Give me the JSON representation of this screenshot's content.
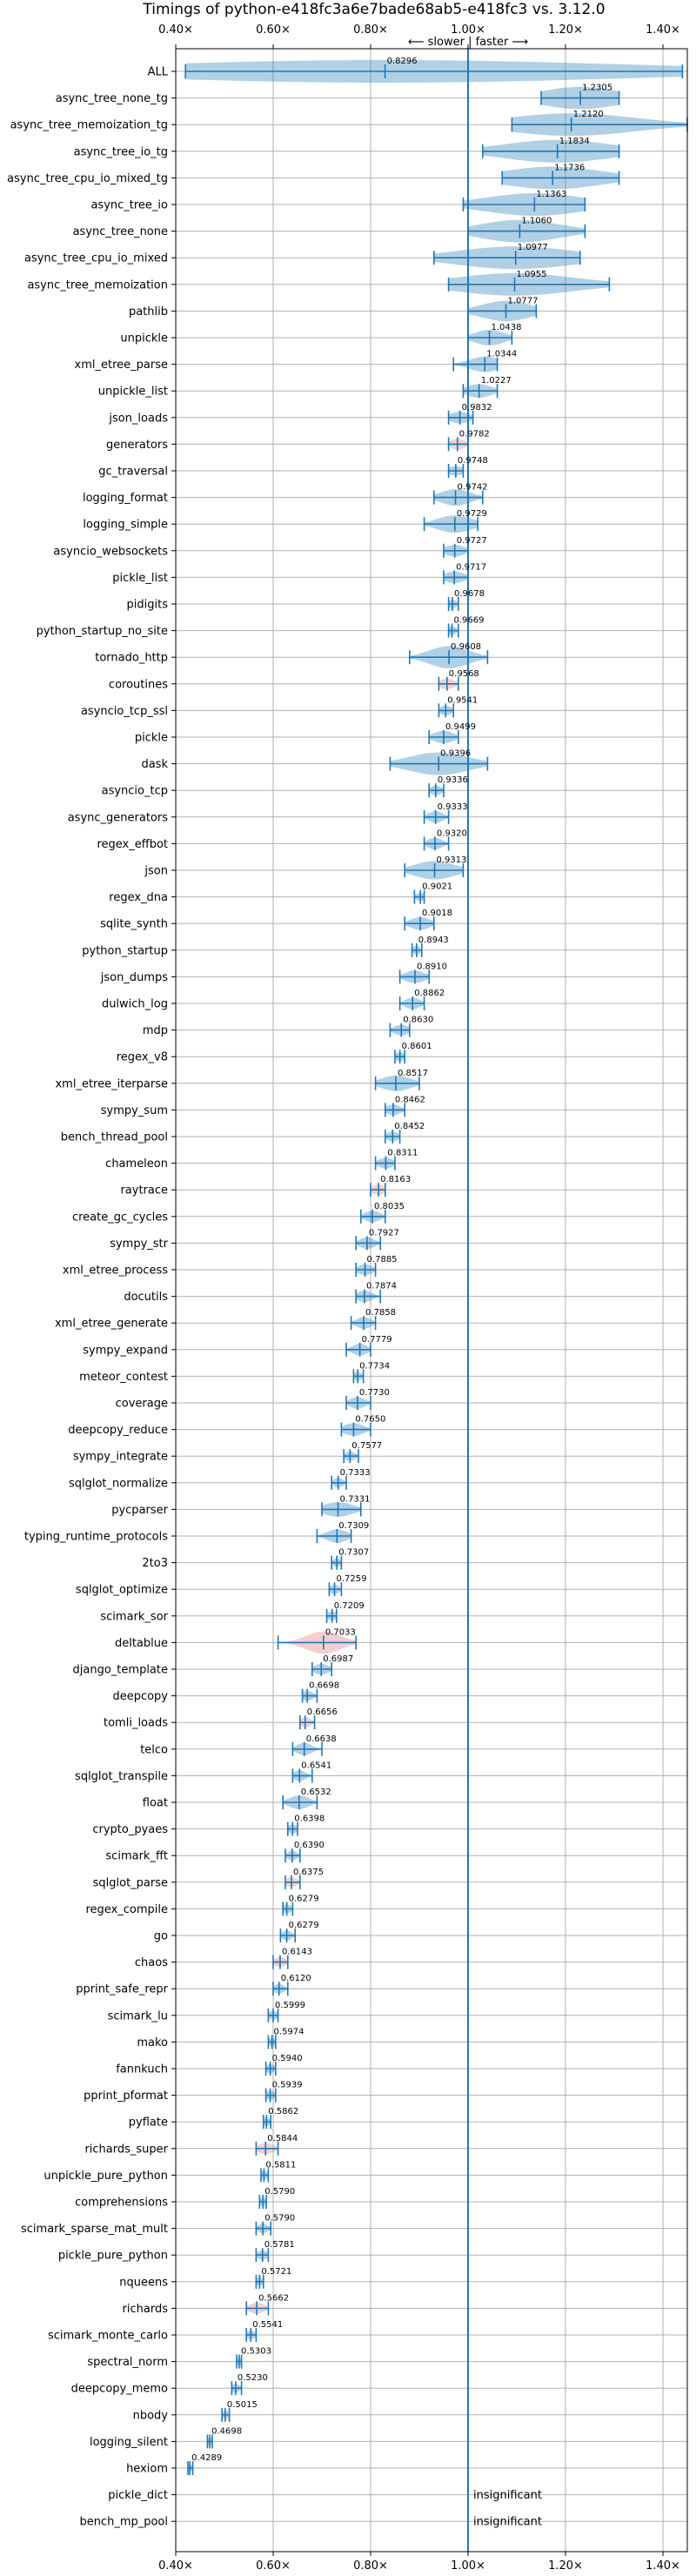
{
  "chart_data": {
    "type": "violin",
    "title": "Timings of python-e418fc3a6e7bade68ab5-e418fc3 vs. 3.12.0",
    "direction_label": "⟵ slower | faster ⟶",
    "xlim": [
      0.4,
      1.45
    ],
    "x_ticks": [
      {
        "value": 0.4,
        "label": "0.40×"
      },
      {
        "value": 0.6,
        "label": "0.60×"
      },
      {
        "value": 0.8,
        "label": "0.80×"
      },
      {
        "value": 1.0,
        "label": "1.00×"
      },
      {
        "value": 1.2,
        "label": "1.20×"
      },
      {
        "value": 1.4,
        "label": "1.40×"
      }
    ],
    "reference_line": 1.0,
    "grid": true,
    "colors": {
      "violin": "#1f77b4",
      "regression": "#e57373",
      "grid": "#b0b0b0"
    },
    "benchmarks": [
      {
        "name": "ALL",
        "value": 0.8296,
        "label": "0.8296",
        "min": 0.42,
        "max": 1.44,
        "spread": 0.5,
        "status": "normal"
      },
      {
        "name": "async_tree_none_tg",
        "value": 1.2305,
        "label": "1.2305",
        "min": 1.15,
        "max": 1.31,
        "spread": 0.08,
        "status": "normal"
      },
      {
        "name": "async_tree_memoization_tg",
        "value": 1.212,
        "label": "1.2120",
        "min": 1.09,
        "max": 1.45,
        "spread": 0.13,
        "status": "normal"
      },
      {
        "name": "async_tree_io_tg",
        "value": 1.1834,
        "label": "1.1834",
        "min": 1.03,
        "max": 1.31,
        "spread": 0.11,
        "status": "normal"
      },
      {
        "name": "async_tree_cpu_io_mixed_tg",
        "value": 1.1736,
        "label": "1.1736",
        "min": 1.07,
        "max": 1.31,
        "spread": 0.1,
        "status": "normal"
      },
      {
        "name": "async_tree_io",
        "value": 1.1363,
        "label": "1.1363",
        "min": 0.99,
        "max": 1.24,
        "spread": 0.1,
        "status": "normal"
      },
      {
        "name": "async_tree_none",
        "value": 1.106,
        "label": "1.1060",
        "min": 1.0,
        "max": 1.24,
        "spread": 0.08,
        "status": "normal"
      },
      {
        "name": "async_tree_cpu_io_mixed",
        "value": 1.0977,
        "label": "1.0977",
        "min": 0.93,
        "max": 1.23,
        "spread": 0.12,
        "status": "normal"
      },
      {
        "name": "async_tree_memoization",
        "value": 1.0955,
        "label": "1.0955",
        "min": 0.96,
        "max": 1.29,
        "spread": 0.12,
        "status": "normal"
      },
      {
        "name": "pathlib",
        "value": 1.0777,
        "label": "1.0777",
        "min": 1.0,
        "max": 1.14,
        "spread": 0.05,
        "status": "normal"
      },
      {
        "name": "unpickle",
        "value": 1.0438,
        "label": "1.0438",
        "min": 1.0,
        "max": 1.09,
        "spread": 0.03,
        "status": "normal"
      },
      {
        "name": "xml_etree_parse",
        "value": 1.0344,
        "label": "1.0344",
        "min": 0.97,
        "max": 1.06,
        "spread": 0.03,
        "status": "normal"
      },
      {
        "name": "unpickle_list",
        "value": 1.0227,
        "label": "1.0227",
        "min": 0.99,
        "max": 1.06,
        "spread": 0.025,
        "status": "normal"
      },
      {
        "name": "json_loads",
        "value": 0.9832,
        "label": "0.9832",
        "min": 0.96,
        "max": 1.01,
        "spread": 0.02,
        "status": "normal"
      },
      {
        "name": "generators",
        "value": 0.9782,
        "label": "0.9782",
        "min": 0.96,
        "max": 1.0,
        "spread": 0.015,
        "status": "regression"
      },
      {
        "name": "gc_traversal",
        "value": 0.9748,
        "label": "0.9748",
        "min": 0.96,
        "max": 0.99,
        "spread": 0.015,
        "status": "normal"
      },
      {
        "name": "logging_format",
        "value": 0.9742,
        "label": "0.9742",
        "min": 0.93,
        "max": 1.03,
        "spread": 0.03,
        "status": "normal"
      },
      {
        "name": "logging_simple",
        "value": 0.9729,
        "label": "0.9729",
        "min": 0.91,
        "max": 1.02,
        "spread": 0.035,
        "status": "normal"
      },
      {
        "name": "asyncio_websockets",
        "value": 0.9727,
        "label": "0.9727",
        "min": 0.95,
        "max": 1.0,
        "spread": 0.02,
        "status": "normal"
      },
      {
        "name": "pickle_list",
        "value": 0.9717,
        "label": "0.9717",
        "min": 0.95,
        "max": 1.0,
        "spread": 0.02,
        "status": "normal"
      },
      {
        "name": "pidigits",
        "value": 0.9678,
        "label": "0.9678",
        "min": 0.96,
        "max": 0.98,
        "spread": 0.008,
        "status": "normal"
      },
      {
        "name": "python_startup_no_site",
        "value": 0.9669,
        "label": "0.9669",
        "min": 0.96,
        "max": 0.98,
        "spread": 0.008,
        "status": "normal"
      },
      {
        "name": "tornado_http",
        "value": 0.9608,
        "label": "0.9608",
        "min": 0.88,
        "max": 1.04,
        "spread": 0.04,
        "status": "normal"
      },
      {
        "name": "coroutines",
        "value": 0.9568,
        "label": "0.9568",
        "min": 0.94,
        "max": 0.98,
        "spread": 0.015,
        "status": "regression"
      },
      {
        "name": "asyncio_tcp_ssl",
        "value": 0.9541,
        "label": "0.9541",
        "min": 0.94,
        "max": 0.97,
        "spread": 0.012,
        "status": "normal"
      },
      {
        "name": "pickle",
        "value": 0.9499,
        "label": "0.9499",
        "min": 0.92,
        "max": 0.98,
        "spread": 0.02,
        "status": "normal"
      },
      {
        "name": "dask",
        "value": 0.9396,
        "label": "0.9396",
        "min": 0.84,
        "max": 1.04,
        "spread": 0.06,
        "status": "normal"
      },
      {
        "name": "asyncio_tcp",
        "value": 0.9336,
        "label": "0.9336",
        "min": 0.92,
        "max": 0.95,
        "spread": 0.012,
        "status": "normal"
      },
      {
        "name": "async_generators",
        "value": 0.9333,
        "label": "0.9333",
        "min": 0.91,
        "max": 0.96,
        "spread": 0.015,
        "status": "normal"
      },
      {
        "name": "regex_effbot",
        "value": 0.932,
        "label": "0.9320",
        "min": 0.91,
        "max": 0.96,
        "spread": 0.015,
        "status": "normal"
      },
      {
        "name": "json",
        "value": 0.9313,
        "label": "0.9313",
        "min": 0.87,
        "max": 0.99,
        "spread": 0.04,
        "status": "normal"
      },
      {
        "name": "regex_dna",
        "value": 0.9021,
        "label": "0.9021",
        "min": 0.89,
        "max": 0.91,
        "spread": 0.008,
        "status": "normal"
      },
      {
        "name": "sqlite_synth",
        "value": 0.9018,
        "label": "0.9018",
        "min": 0.87,
        "max": 0.93,
        "spread": 0.02,
        "status": "normal"
      },
      {
        "name": "python_startup",
        "value": 0.8943,
        "label": "0.8943",
        "min": 0.885,
        "max": 0.905,
        "spread": 0.008,
        "status": "normal"
      },
      {
        "name": "json_dumps",
        "value": 0.891,
        "label": "0.8910",
        "min": 0.86,
        "max": 0.92,
        "spread": 0.02,
        "status": "normal"
      },
      {
        "name": "dulwich_log",
        "value": 0.8862,
        "label": "0.8862",
        "min": 0.86,
        "max": 0.91,
        "spread": 0.015,
        "status": "normal"
      },
      {
        "name": "mdp",
        "value": 0.863,
        "label": "0.8630",
        "min": 0.84,
        "max": 0.88,
        "spread": 0.015,
        "status": "normal"
      },
      {
        "name": "regex_v8",
        "value": 0.8601,
        "label": "0.8601",
        "min": 0.85,
        "max": 0.87,
        "spread": 0.01,
        "status": "normal"
      },
      {
        "name": "xml_etree_iterparse",
        "value": 0.8517,
        "label": "0.8517",
        "min": 0.81,
        "max": 0.9,
        "spread": 0.03,
        "status": "normal"
      },
      {
        "name": "sympy_sum",
        "value": 0.8462,
        "label": "0.8462",
        "min": 0.83,
        "max": 0.87,
        "spread": 0.015,
        "status": "normal"
      },
      {
        "name": "bench_thread_pool",
        "value": 0.8452,
        "label": "0.8452",
        "min": 0.83,
        "max": 0.86,
        "spread": 0.012,
        "status": "normal"
      },
      {
        "name": "chameleon",
        "value": 0.8311,
        "label": "0.8311",
        "min": 0.81,
        "max": 0.85,
        "spread": 0.015,
        "status": "normal"
      },
      {
        "name": "raytrace",
        "value": 0.8163,
        "label": "0.8163",
        "min": 0.8,
        "max": 0.83,
        "spread": 0.015,
        "status": "regression"
      },
      {
        "name": "create_gc_cycles",
        "value": 0.8035,
        "label": "0.8035",
        "min": 0.78,
        "max": 0.83,
        "spread": 0.015,
        "status": "normal"
      },
      {
        "name": "sympy_str",
        "value": 0.7927,
        "label": "0.7927",
        "min": 0.77,
        "max": 0.82,
        "spread": 0.015,
        "status": "normal"
      },
      {
        "name": "xml_etree_process",
        "value": 0.7885,
        "label": "0.7885",
        "min": 0.77,
        "max": 0.81,
        "spread": 0.015,
        "status": "normal"
      },
      {
        "name": "docutils",
        "value": 0.7874,
        "label": "0.7874",
        "min": 0.77,
        "max": 0.82,
        "spread": 0.015,
        "status": "normal"
      },
      {
        "name": "xml_etree_generate",
        "value": 0.7858,
        "label": "0.7858",
        "min": 0.76,
        "max": 0.81,
        "spread": 0.015,
        "status": "normal"
      },
      {
        "name": "sympy_expand",
        "value": 0.7779,
        "label": "0.7779",
        "min": 0.75,
        "max": 0.8,
        "spread": 0.015,
        "status": "normal"
      },
      {
        "name": "meteor_contest",
        "value": 0.7734,
        "label": "0.7734",
        "min": 0.765,
        "max": 0.785,
        "spread": 0.008,
        "status": "normal"
      },
      {
        "name": "coverage",
        "value": 0.773,
        "label": "0.7730",
        "min": 0.75,
        "max": 0.8,
        "spread": 0.015,
        "status": "normal"
      },
      {
        "name": "deepcopy_reduce",
        "value": 0.765,
        "label": "0.7650",
        "min": 0.74,
        "max": 0.8,
        "spread": 0.02,
        "status": "normal"
      },
      {
        "name": "sympy_integrate",
        "value": 0.7577,
        "label": "0.7577",
        "min": 0.745,
        "max": 0.775,
        "spread": 0.01,
        "status": "normal"
      },
      {
        "name": "sqlglot_normalize",
        "value": 0.7333,
        "label": "0.7333",
        "min": 0.72,
        "max": 0.75,
        "spread": 0.01,
        "status": "normal"
      },
      {
        "name": "pycparser",
        "value": 0.7331,
        "label": "0.7331",
        "min": 0.7,
        "max": 0.78,
        "spread": 0.03,
        "status": "normal"
      },
      {
        "name": "typing_runtime_protocols",
        "value": 0.7309,
        "label": "0.7309",
        "min": 0.69,
        "max": 0.76,
        "spread": 0.02,
        "status": "normal"
      },
      {
        "name": "2to3",
        "value": 0.7307,
        "label": "0.7307",
        "min": 0.72,
        "max": 0.74,
        "spread": 0.008,
        "status": "normal"
      },
      {
        "name": "sqlglot_optimize",
        "value": 0.7259,
        "label": "0.7259",
        "min": 0.715,
        "max": 0.74,
        "spread": 0.01,
        "status": "normal"
      },
      {
        "name": "scimark_sor",
        "value": 0.7209,
        "label": "0.7209",
        "min": 0.71,
        "max": 0.73,
        "spread": 0.01,
        "status": "normal"
      },
      {
        "name": "deltablue",
        "value": 0.7033,
        "label": "0.7033",
        "min": 0.61,
        "max": 0.77,
        "spread": 0.035,
        "status": "regression"
      },
      {
        "name": "django_template",
        "value": 0.6987,
        "label": "0.6987",
        "min": 0.68,
        "max": 0.72,
        "spread": 0.015,
        "status": "normal"
      },
      {
        "name": "deepcopy",
        "value": 0.6698,
        "label": "0.6698",
        "min": 0.66,
        "max": 0.69,
        "spread": 0.012,
        "status": "normal"
      },
      {
        "name": "tomli_loads",
        "value": 0.6656,
        "label": "0.6656",
        "min": 0.655,
        "max": 0.685,
        "spread": 0.012,
        "status": "regression"
      },
      {
        "name": "telco",
        "value": 0.6638,
        "label": "0.6638",
        "min": 0.64,
        "max": 0.7,
        "spread": 0.015,
        "status": "normal"
      },
      {
        "name": "sqlglot_transpile",
        "value": 0.6541,
        "label": "0.6541",
        "min": 0.64,
        "max": 0.68,
        "spread": 0.012,
        "status": "normal"
      },
      {
        "name": "float",
        "value": 0.6532,
        "label": "0.6532",
        "min": 0.62,
        "max": 0.69,
        "spread": 0.02,
        "status": "normal"
      },
      {
        "name": "crypto_pyaes",
        "value": 0.6398,
        "label": "0.6398",
        "min": 0.63,
        "max": 0.65,
        "spread": 0.01,
        "status": "normal"
      },
      {
        "name": "scimark_fft",
        "value": 0.639,
        "label": "0.6390",
        "min": 0.625,
        "max": 0.655,
        "spread": 0.01,
        "status": "normal"
      },
      {
        "name": "sqlglot_parse",
        "value": 0.6375,
        "label": "0.6375",
        "min": 0.625,
        "max": 0.655,
        "spread": 0.012,
        "status": "regression"
      },
      {
        "name": "regex_compile",
        "value": 0.6279,
        "label": "0.6279",
        "min": 0.62,
        "max": 0.64,
        "spread": 0.01,
        "status": "normal"
      },
      {
        "name": "go",
        "value": 0.6279,
        "label": "0.6279",
        "min": 0.615,
        "max": 0.645,
        "spread": 0.01,
        "status": "normal"
      },
      {
        "name": "chaos",
        "value": 0.6143,
        "label": "0.6143",
        "min": 0.6,
        "max": 0.63,
        "spread": 0.012,
        "status": "regression"
      },
      {
        "name": "pprint_safe_repr",
        "value": 0.612,
        "label": "0.6120",
        "min": 0.6,
        "max": 0.63,
        "spread": 0.01,
        "status": "normal"
      },
      {
        "name": "scimark_lu",
        "value": 0.5999,
        "label": "0.5999",
        "min": 0.59,
        "max": 0.61,
        "spread": 0.01,
        "status": "normal"
      },
      {
        "name": "mako",
        "value": 0.5974,
        "label": "0.5974",
        "min": 0.59,
        "max": 0.605,
        "spread": 0.008,
        "status": "normal"
      },
      {
        "name": "fannkuch",
        "value": 0.594,
        "label": "0.5940",
        "min": 0.585,
        "max": 0.605,
        "spread": 0.01,
        "status": "normal"
      },
      {
        "name": "pprint_pformat",
        "value": 0.5939,
        "label": "0.5939",
        "min": 0.585,
        "max": 0.605,
        "spread": 0.01,
        "status": "normal"
      },
      {
        "name": "pyflate",
        "value": 0.5862,
        "label": "0.5862",
        "min": 0.58,
        "max": 0.595,
        "spread": 0.008,
        "status": "normal"
      },
      {
        "name": "richards_super",
        "value": 0.5844,
        "label": "0.5844",
        "min": 0.565,
        "max": 0.61,
        "spread": 0.015,
        "status": "regression"
      },
      {
        "name": "unpickle_pure_python",
        "value": 0.5811,
        "label": "0.5811",
        "min": 0.575,
        "max": 0.59,
        "spread": 0.008,
        "status": "normal"
      },
      {
        "name": "comprehensions",
        "value": 0.579,
        "label": "0.5790",
        "min": 0.572,
        "max": 0.586,
        "spread": 0.007,
        "status": "normal"
      },
      {
        "name": "scimark_sparse_mat_mult",
        "value": 0.579,
        "label": "0.5790",
        "min": 0.565,
        "max": 0.595,
        "spread": 0.01,
        "status": "normal"
      },
      {
        "name": "pickle_pure_python",
        "value": 0.5781,
        "label": "0.5781",
        "min": 0.565,
        "max": 0.59,
        "spread": 0.01,
        "status": "normal"
      },
      {
        "name": "nqueens",
        "value": 0.5721,
        "label": "0.5721",
        "min": 0.565,
        "max": 0.58,
        "spread": 0.008,
        "status": "normal"
      },
      {
        "name": "richards",
        "value": 0.5662,
        "label": "0.5662",
        "min": 0.545,
        "max": 0.59,
        "spread": 0.015,
        "status": "regression"
      },
      {
        "name": "scimark_monte_carlo",
        "value": 0.5541,
        "label": "0.5541",
        "min": 0.545,
        "max": 0.565,
        "spread": 0.008,
        "status": "normal"
      },
      {
        "name": "spectral_norm",
        "value": 0.5303,
        "label": "0.5303",
        "min": 0.525,
        "max": 0.535,
        "spread": 0.005,
        "status": "normal"
      },
      {
        "name": "deepcopy_memo",
        "value": 0.523,
        "label": "0.5230",
        "min": 0.515,
        "max": 0.535,
        "spread": 0.008,
        "status": "normal"
      },
      {
        "name": "nbody",
        "value": 0.5015,
        "label": "0.5015",
        "min": 0.495,
        "max": 0.51,
        "spread": 0.007,
        "status": "normal"
      },
      {
        "name": "logging_silent",
        "value": 0.4698,
        "label": "0.4698",
        "min": 0.465,
        "max": 0.475,
        "spread": 0.005,
        "status": "normal"
      },
      {
        "name": "hexiom",
        "value": 0.4289,
        "label": "0.4289",
        "min": 0.425,
        "max": 0.435,
        "spread": 0.005,
        "status": "normal"
      },
      {
        "name": "pickle_dict",
        "value": null,
        "label": "insignificant",
        "min": null,
        "max": null,
        "spread": 0,
        "status": "insignificant"
      },
      {
        "name": "bench_mp_pool",
        "value": null,
        "label": "insignificant",
        "min": null,
        "max": null,
        "spread": 0,
        "status": "insignificant"
      }
    ]
  }
}
